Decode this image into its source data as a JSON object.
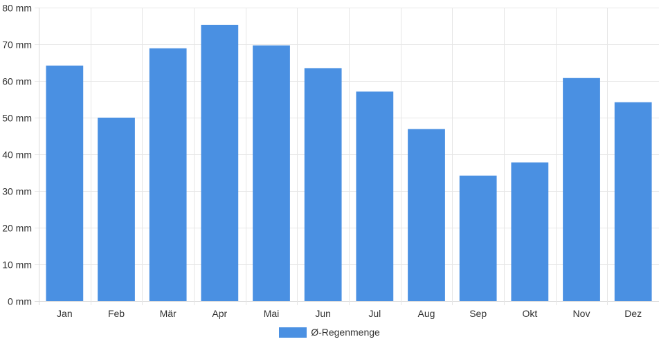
{
  "colors": {
    "bar": "#4a90e2",
    "grid": "#e6e6e6",
    "axis": "#d9d9d9",
    "text": "#333333"
  },
  "chart_data": {
    "type": "bar",
    "categories": [
      "Jan",
      "Feb",
      "Mär",
      "Apr",
      "Mai",
      "Jun",
      "Jul",
      "Aug",
      "Sep",
      "Okt",
      "Nov",
      "Dez"
    ],
    "series": [
      {
        "name": "Ø-Regenmenge",
        "values": [
          64.2,
          50.0,
          68.9,
          75.3,
          69.7,
          63.5,
          57.1,
          46.9,
          34.2,
          37.8,
          60.8,
          54.2
        ]
      }
    ],
    "ylim": [
      0,
      80
    ],
    "yticks": [
      0,
      10,
      20,
      30,
      40,
      50,
      60,
      70,
      80
    ],
    "ytick_labels": [
      "0 mm",
      "10 mm",
      "20 mm",
      "30 mm",
      "40 mm",
      "50 mm",
      "60 mm",
      "70 mm",
      "80 mm"
    ],
    "grid": true,
    "legend_position": "bottom"
  }
}
